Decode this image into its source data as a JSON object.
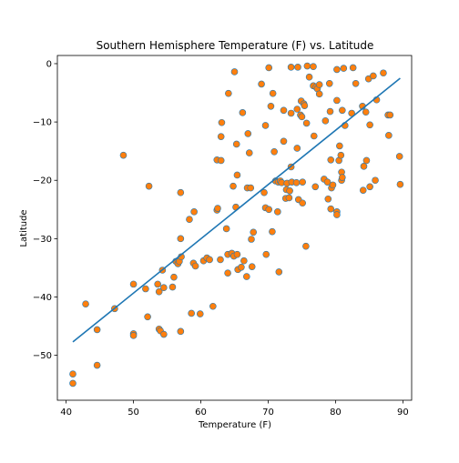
{
  "chart_data": {
    "type": "scatter",
    "title": "Southern Hemisphere Temperature (F) vs. Latitude",
    "xlabel": "Temperature (F)",
    "ylabel": "Latitude",
    "xlim": [
      38.7,
      91.3
    ],
    "ylim": [
      -57.7,
      1.4
    ],
    "xticks": [
      40,
      50,
      60,
      70,
      80,
      90
    ],
    "yticks": [
      0,
      -10,
      -20,
      -30,
      -40,
      -50
    ],
    "grid": false,
    "marker_color": "#ff7f0e",
    "marker_edge_color": "#1f77b4",
    "line_color": "#1f77b4",
    "regression_line": {
      "x": [
        41.0,
        89.6
      ],
      "y": [
        -47.7,
        -2.5
      ]
    },
    "points": [
      [
        41.0,
        -53.2
      ],
      [
        41.0,
        -54.8
      ],
      [
        42.9,
        -41.2
      ],
      [
        44.6,
        -45.6
      ],
      [
        44.6,
        -51.7
      ],
      [
        47.2,
        -42.0
      ],
      [
        48.5,
        -15.7
      ],
      [
        50.0,
        -37.8
      ],
      [
        50.0,
        -46.3
      ],
      [
        50.0,
        -46.6
      ],
      [
        51.8,
        -38.6
      ],
      [
        52.1,
        -43.4
      ],
      [
        52.3,
        -21.0
      ],
      [
        53.6,
        -37.8
      ],
      [
        53.8,
        -39.1
      ],
      [
        53.8,
        -45.5
      ],
      [
        54.0,
        -45.8
      ],
      [
        54.3,
        -35.4
      ],
      [
        54.5,
        -46.4
      ],
      [
        54.5,
        -38.4
      ],
      [
        55.8,
        -38.3
      ],
      [
        56.0,
        -36.6
      ],
      [
        56.3,
        -33.9
      ],
      [
        56.6,
        -34.3
      ],
      [
        56.8,
        -33.9
      ],
      [
        57.0,
        -22.1
      ],
      [
        57.0,
        -45.9
      ],
      [
        57.0,
        -30.0
      ],
      [
        57.1,
        -33.1
      ],
      [
        58.3,
        -26.7
      ],
      [
        58.6,
        -42.8
      ],
      [
        58.9,
        -34.2
      ],
      [
        59.0,
        -25.4
      ],
      [
        59.2,
        -34.7
      ],
      [
        59.9,
        -42.9
      ],
      [
        60.4,
        -33.8
      ],
      [
        60.9,
        -33.3
      ],
      [
        61.3,
        -33.6
      ],
      [
        61.8,
        -41.6
      ],
      [
        62.4,
        -25.1
      ],
      [
        62.4,
        -16.5
      ],
      [
        62.5,
        -24.8
      ],
      [
        62.9,
        -33.6
      ],
      [
        63.0,
        -16.6
      ],
      [
        63.0,
        -12.5
      ],
      [
        63.1,
        -10.1
      ],
      [
        63.8,
        -28.3
      ],
      [
        64.0,
        -32.7
      ],
      [
        64.0,
        -35.9
      ],
      [
        64.1,
        -5.1
      ],
      [
        64.6,
        -32.5
      ],
      [
        64.8,
        -21.0
      ],
      [
        64.9,
        -33.0
      ],
      [
        65.0,
        -1.4
      ],
      [
        65.2,
        -24.6
      ],
      [
        65.3,
        -13.8
      ],
      [
        65.4,
        -19.1
      ],
      [
        65.4,
        -32.7
      ],
      [
        65.5,
        -35.3
      ],
      [
        66.0,
        -34.9
      ],
      [
        66.2,
        -8.4
      ],
      [
        66.4,
        -33.8
      ],
      [
        66.8,
        -36.5
      ],
      [
        66.9,
        -21.3
      ],
      [
        67.0,
        -12.0
      ],
      [
        67.2,
        -15.3
      ],
      [
        67.4,
        -21.3
      ],
      [
        67.5,
        -30.1
      ],
      [
        67.6,
        -34.8
      ],
      [
        67.8,
        -28.9
      ],
      [
        69.0,
        -3.5
      ],
      [
        69.4,
        -22.1
      ],
      [
        69.6,
        -24.7
      ],
      [
        69.6,
        -10.6
      ],
      [
        69.7,
        -32.7
      ],
      [
        70.1,
        -25.0
      ],
      [
        70.1,
        -0.7
      ],
      [
        70.4,
        -7.3
      ],
      [
        70.6,
        -28.8
      ],
      [
        70.7,
        -5.1
      ],
      [
        70.9,
        -15.1
      ],
      [
        71.1,
        -20.1
      ],
      [
        71.4,
        -25.4
      ],
      [
        71.5,
        -20.3
      ],
      [
        71.6,
        -35.7
      ],
      [
        71.8,
        -20.1
      ],
      [
        72.0,
        -20.4
      ],
      [
        72.3,
        -8.0
      ],
      [
        72.3,
        -13.3
      ],
      [
        72.6,
        -23.1
      ],
      [
        72.7,
        -21.6
      ],
      [
        72.8,
        -20.5
      ],
      [
        73.1,
        -23.0
      ],
      [
        73.2,
        -21.8
      ],
      [
        73.4,
        -17.7
      ],
      [
        73.4,
        -8.5
      ],
      [
        73.4,
        -0.6
      ],
      [
        73.5,
        -20.3
      ],
      [
        74.2,
        -20.4
      ],
      [
        74.3,
        -7.8
      ],
      [
        74.3,
        -14.5
      ],
      [
        74.4,
        -0.6
      ],
      [
        74.5,
        -23.3
      ],
      [
        74.8,
        -8.8
      ],
      [
        74.9,
        -6.4
      ],
      [
        75.0,
        -9.1
      ],
      [
        75.1,
        -23.9
      ],
      [
        75.1,
        -20.3
      ],
      [
        75.3,
        -6.9
      ],
      [
        75.4,
        -7.2
      ],
      [
        75.6,
        -31.3
      ],
      [
        75.7,
        -10.2
      ],
      [
        75.8,
        -0.4
      ],
      [
        76.1,
        -2.3
      ],
      [
        76.7,
        -0.5
      ],
      [
        76.7,
        -3.8
      ],
      [
        76.8,
        -12.4
      ],
      [
        77.0,
        -21.1
      ],
      [
        77.1,
        -4.0
      ],
      [
        77.3,
        -4.3
      ],
      [
        77.6,
        -3.6
      ],
      [
        77.6,
        -5.2
      ],
      [
        78.3,
        -19.8
      ],
      [
        78.5,
        -9.8
      ],
      [
        78.8,
        -20.3
      ],
      [
        78.9,
        -23.2
      ],
      [
        79.1,
        -3.4
      ],
      [
        79.2,
        -8.2
      ],
      [
        79.3,
        -16.5
      ],
      [
        79.3,
        -24.9
      ],
      [
        79.4,
        -21.3
      ],
      [
        79.6,
        -20.8
      ],
      [
        80.2,
        -6.3
      ],
      [
        80.2,
        -25.4
      ],
      [
        80.2,
        -25.9
      ],
      [
        80.2,
        -1.0
      ],
      [
        80.5,
        -16.6
      ],
      [
        80.6,
        -14.1
      ],
      [
        80.8,
        -15.7
      ],
      [
        80.9,
        -18.6
      ],
      [
        80.9,
        -20.0
      ],
      [
        81.0,
        -8.0
      ],
      [
        81.0,
        -19.5
      ],
      [
        81.2,
        -0.8
      ],
      [
        81.4,
        -10.6
      ],
      [
        82.4,
        -8.5
      ],
      [
        82.6,
        -0.7
      ],
      [
        83.0,
        -3.4
      ],
      [
        84.0,
        -7.3
      ],
      [
        84.1,
        -21.7
      ],
      [
        84.2,
        -17.6
      ],
      [
        84.5,
        -8.3
      ],
      [
        84.6,
        -16.6
      ],
      [
        84.9,
        -2.6
      ],
      [
        85.1,
        -10.5
      ],
      [
        85.1,
        -21.1
      ],
      [
        85.6,
        -2.1
      ],
      [
        85.9,
        -20.0
      ],
      [
        86.1,
        -6.2
      ],
      [
        87.1,
        -1.6
      ],
      [
        87.8,
        -8.8
      ],
      [
        87.9,
        -12.3
      ],
      [
        88.1,
        -8.8
      ],
      [
        89.5,
        -15.9
      ],
      [
        89.6,
        -20.7
      ]
    ]
  }
}
